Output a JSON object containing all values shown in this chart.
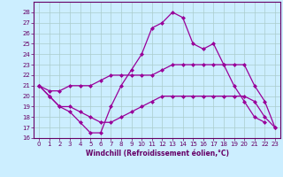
{
  "xlabel": "Windchill (Refroidissement éolien,°C)",
  "x_values": [
    0,
    1,
    2,
    3,
    4,
    5,
    6,
    7,
    8,
    9,
    10,
    11,
    12,
    13,
    14,
    15,
    16,
    17,
    18,
    19,
    20,
    21,
    22,
    23
  ],
  "line1": [
    21,
    20,
    19,
    18.5,
    17.5,
    16.5,
    16.5,
    19,
    21,
    22.5,
    24,
    26.5,
    27,
    28,
    27.5,
    25,
    24.5,
    25,
    23,
    21,
    19.5,
    18,
    17.5,
    null
  ],
  "line2": [
    21,
    20,
    19,
    19,
    18.5,
    18,
    17.5,
    17.5,
    18,
    18.5,
    19,
    19.5,
    20,
    20,
    20,
    20,
    20,
    20,
    20,
    20,
    20,
    19.5,
    18,
    17
  ],
  "line3": [
    21,
    20.5,
    20.5,
    21,
    21,
    21,
    21.5,
    22,
    22,
    22,
    22,
    22,
    22.5,
    23,
    23,
    23,
    23,
    23,
    23,
    23,
    23,
    21,
    19.5,
    17
  ],
  "ylim": [
    16,
    29
  ],
  "xlim": [
    -0.5,
    23.5
  ],
  "yticks": [
    16,
    17,
    18,
    19,
    20,
    21,
    22,
    23,
    24,
    25,
    26,
    27,
    28
  ],
  "xticks": [
    0,
    1,
    2,
    3,
    4,
    5,
    6,
    7,
    8,
    9,
    10,
    11,
    12,
    13,
    14,
    15,
    16,
    17,
    18,
    19,
    20,
    21,
    22,
    23
  ],
  "line_color": "#990099",
  "bg_color": "#cceeff",
  "grid_color": "#aacccc",
  "axis_color": "#660066",
  "tick_color": "#660066",
  "marker": "D",
  "marker_size": 2.0,
  "line_width": 0.9,
  "font_color": "#660066",
  "tick_fontsize": 5.0,
  "xlabel_fontsize": 5.5
}
